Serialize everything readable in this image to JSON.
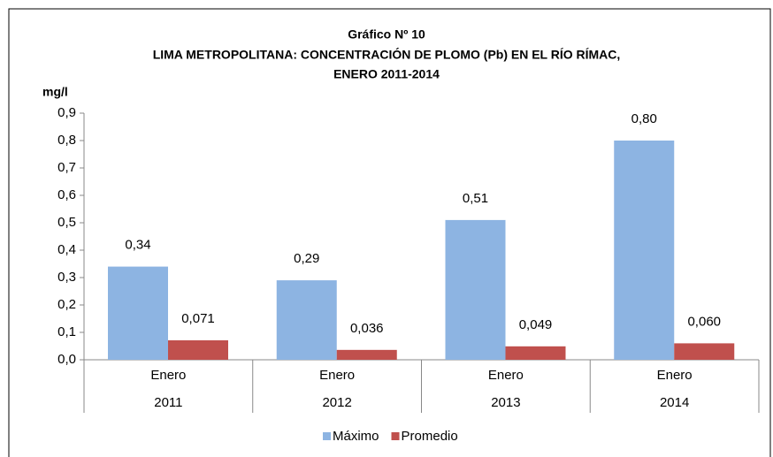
{
  "chart_data": {
    "type": "bar",
    "title": "Gráfico Nº 10",
    "subtitle": [
      "LIMA METROPOLITANA: CONCENTRACIÓN DE PLOMO (Pb) EN EL RÍO RÍMAC,",
      "ENERO 2011-2014"
    ],
    "y_label": "mg/l",
    "categories": [
      [
        "Enero",
        "2011"
      ],
      [
        "Enero",
        "2012"
      ],
      [
        "Enero",
        "2013"
      ],
      [
        "Enero",
        "2014"
      ]
    ],
    "series": [
      {
        "name": "Máximo",
        "color": "#8db4e2",
        "values": [
          0.34,
          0.29,
          0.51,
          0.8
        ],
        "value_labels": [
          "0,34",
          "0,29",
          "0,51",
          "0,80"
        ]
      },
      {
        "name": "Promedio",
        "color": "#c0504d",
        "values": [
          0.071,
          0.036,
          0.049,
          0.06
        ],
        "value_labels": [
          "0,071",
          "0,036",
          "0,049",
          "0,060"
        ]
      }
    ],
    "ylim": [
      0,
      0.9
    ],
    "yticks": [
      {
        "value": 0,
        "label": "0,0"
      },
      {
        "value": 0.1,
        "label": "0,1"
      },
      {
        "value": 0.2,
        "label": "0,2"
      },
      {
        "value": 0.3,
        "label": "0,3"
      },
      {
        "value": 0.4,
        "label": "0,4"
      },
      {
        "value": 0.5,
        "label": "0,5"
      },
      {
        "value": 0.6,
        "label": "0,6"
      },
      {
        "value": 0.7,
        "label": "0,7"
      },
      {
        "value": 0.8,
        "label": "0,8"
      },
      {
        "value": 0.9,
        "label": "0,9"
      }
    ],
    "legend": "bottom"
  }
}
